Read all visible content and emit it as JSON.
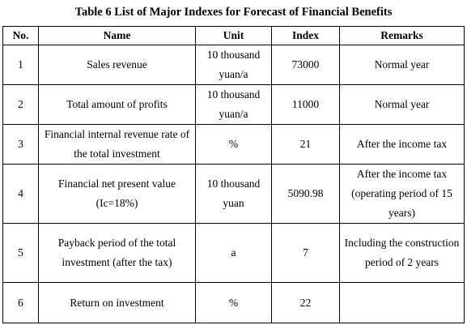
{
  "caption": "Table 6 List of Major Indexes for Forecast of Financial Benefits",
  "headers": {
    "no": "No.",
    "name": "Name",
    "unit": "Unit",
    "index": "Index",
    "remarks": "Remarks"
  },
  "rows": [
    {
      "no": "1",
      "name": "Sales revenue",
      "unit": "10 thousand yuan/a",
      "index": "73000",
      "remarks": "Normal year"
    },
    {
      "no": "2",
      "name": "Total amount of profits",
      "unit": "10 thousand yuan/a",
      "index": "11000",
      "remarks": "Normal year"
    },
    {
      "no": "3",
      "name": "Financial internal revenue rate of the total investment",
      "unit": "%",
      "index": "21",
      "remarks": "After the income tax"
    },
    {
      "no": "4",
      "name": "Financial net present value (Ic=18%)",
      "unit": "10 thousand yuan",
      "index": "5090.98",
      "remarks": "After the income tax (operating period of 15 years)"
    },
    {
      "no": "5",
      "name": "Payback period of the total investment (after the tax)",
      "unit": "a",
      "index": "7",
      "remarks": "Including the construction period of 2 years"
    },
    {
      "no": "6",
      "name": "Return on investment",
      "unit": "%",
      "index": "22",
      "remarks": ""
    }
  ]
}
